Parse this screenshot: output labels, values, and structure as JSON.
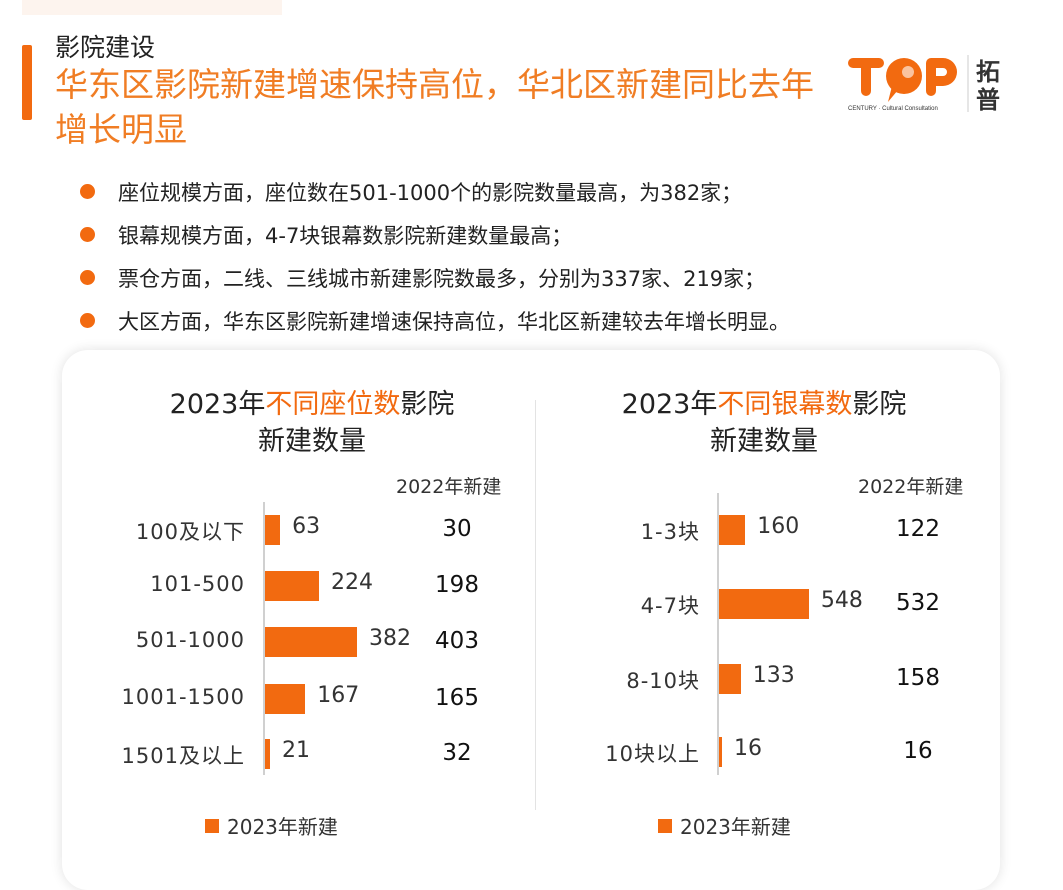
{
  "header": {
    "section": "影院建设",
    "headline": "华东区影院新建增速保持高位，华北区新建同比去年增长明显",
    "logo_text": "TOP 拓普 CENTURY Cultural Consultation"
  },
  "bullets": [
    "座位规模方面，座位数在501-1000个的影院数量最高，为382家；",
    "银幕规模方面，4-7块银幕数影院新建数量最高；",
    "票仓方面，二线、三线城市新建影院数最多，分别为337家、219家；",
    "大区方面，华东区影院新建增速保持高位，华北区新建较去年增长明显。"
  ],
  "colors": {
    "accent": "#f26a10",
    "headline": "#f07d24"
  },
  "chart_data": [
    {
      "type": "bar",
      "orientation": "horizontal",
      "title_pre": "2023年",
      "title_hl": "不同座位数",
      "title_post": "影院",
      "title_line2": "新建数量",
      "column_header": "2022年新建",
      "categories": [
        "100及以下",
        "101-500",
        "501-1000",
        "1001-1500",
        "1501及以上"
      ],
      "series": [
        {
          "name": "2023年新建",
          "values": [
            63,
            224,
            382,
            167,
            21
          ]
        }
      ],
      "values_2022": [
        30,
        198,
        403,
        165,
        32
      ],
      "legend": "2023年新建"
    },
    {
      "type": "bar",
      "orientation": "horizontal",
      "title_pre": "2023年",
      "title_hl": "不同银幕数",
      "title_post": "影院",
      "title_line2": "新建数量",
      "column_header": "2022年新建",
      "categories": [
        "1-3块",
        "4-7块",
        "8-10块",
        "10块以上"
      ],
      "series": [
        {
          "name": "2023年新建",
          "values": [
            160,
            548,
            133,
            16
          ]
        }
      ],
      "values_2022": [
        122,
        532,
        158,
        16
      ],
      "legend": "2023年新建"
    }
  ]
}
